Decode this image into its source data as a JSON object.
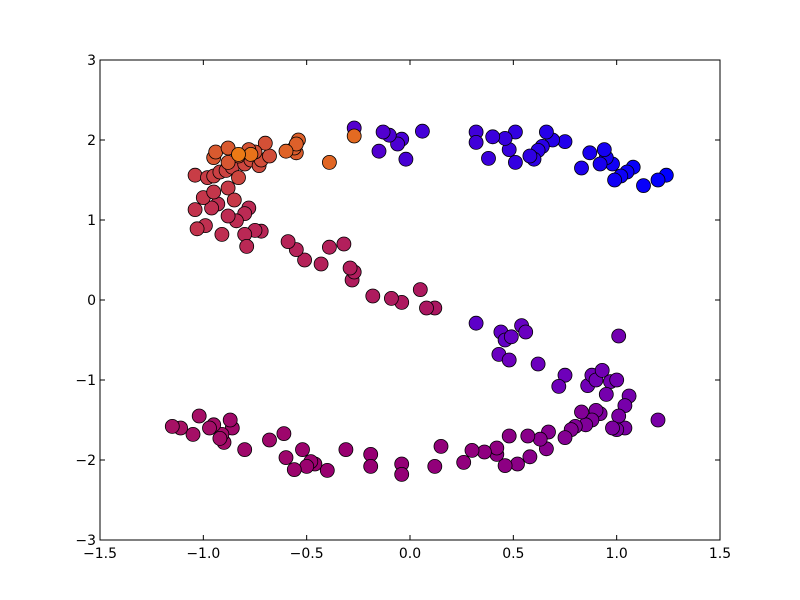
{
  "chart_data": {
    "type": "scatter",
    "title": "",
    "xlabel": "",
    "ylabel": "",
    "xlim": [
      -1.5,
      1.5
    ],
    "ylim": [
      -3,
      3
    ],
    "grid": false,
    "legend": "none",
    "x_ticks": [
      "−1.5",
      "−1.0",
      "−0.5",
      "0.0",
      "0.5",
      "1.0",
      "1.5"
    ],
    "y_ticks": [
      "−3",
      "−2",
      "−1",
      "0",
      "1",
      "2",
      "3"
    ],
    "colormap": "gnuplot2-like (blue → purple → red → orange)",
    "color_stops": [
      "#0000ff",
      "#6a00c0",
      "#980070",
      "#c03050",
      "#f08010"
    ],
    "series": [
      {
        "points": [
          {
            "x": 1.24,
            "y": 1.56,
            "c": 0.0
          },
          {
            "x": 1.2,
            "y": 1.5,
            "c": 0.01
          },
          {
            "x": 1.13,
            "y": 1.43,
            "c": 0.02
          },
          {
            "x": 1.08,
            "y": 1.66,
            "c": 0.02
          },
          {
            "x": 1.05,
            "y": 1.6,
            "c": 0.03
          },
          {
            "x": 1.02,
            "y": 1.55,
            "c": 0.03
          },
          {
            "x": 0.99,
            "y": 1.5,
            "c": 0.04
          },
          {
            "x": 0.98,
            "y": 1.7,
            "c": 0.04
          },
          {
            "x": 0.95,
            "y": 1.78,
            "c": 0.05
          },
          {
            "x": 0.94,
            "y": 1.88,
            "c": 0.05
          },
          {
            "x": 0.92,
            "y": 1.7,
            "c": 0.06
          },
          {
            "x": 0.87,
            "y": 1.84,
            "c": 0.06
          },
          {
            "x": 0.83,
            "y": 1.65,
            "c": 0.07
          },
          {
            "x": 0.75,
            "y": 1.98,
            "c": 0.08
          },
          {
            "x": 0.69,
            "y": 2.0,
            "c": 0.09
          },
          {
            "x": 0.66,
            "y": 2.1,
            "c": 0.09
          },
          {
            "x": 0.64,
            "y": 1.92,
            "c": 0.1
          },
          {
            "x": 0.62,
            "y": 1.87,
            "c": 0.1
          },
          {
            "x": 0.6,
            "y": 1.76,
            "c": 0.11
          },
          {
            "x": 0.58,
            "y": 1.8,
            "c": 0.11
          },
          {
            "x": 0.51,
            "y": 2.1,
            "c": 0.12
          },
          {
            "x": 0.51,
            "y": 1.72,
            "c": 0.12
          },
          {
            "x": 0.48,
            "y": 1.88,
            "c": 0.13
          },
          {
            "x": 0.46,
            "y": 2.02,
            "c": 0.13
          },
          {
            "x": 0.4,
            "y": 2.04,
            "c": 0.14
          },
          {
            "x": 0.38,
            "y": 1.77,
            "c": 0.14
          },
          {
            "x": 0.32,
            "y": 2.1,
            "c": 0.15
          },
          {
            "x": 0.32,
            "y": 1.97,
            "c": 0.15
          },
          {
            "x": 0.06,
            "y": 2.11,
            "c": 0.16
          },
          {
            "x": -0.02,
            "y": 1.76,
            "c": 0.17
          },
          {
            "x": -0.04,
            "y": 2.01,
            "c": 0.17
          },
          {
            "x": -0.06,
            "y": 1.95,
            "c": 0.18
          },
          {
            "x": -0.1,
            "y": 2.06,
            "c": 0.18
          },
          {
            "x": -0.13,
            "y": 2.1,
            "c": 0.19
          },
          {
            "x": -0.15,
            "y": 1.86,
            "c": 0.19
          },
          {
            "x": -0.27,
            "y": 2.15,
            "c": 0.2
          },
          {
            "x": 0.32,
            "y": -0.29,
            "c": 0.22
          },
          {
            "x": 0.44,
            "y": -0.4,
            "c": 0.23
          },
          {
            "x": 0.46,
            "y": -0.5,
            "c": 0.23
          },
          {
            "x": 0.49,
            "y": -0.46,
            "c": 0.24
          },
          {
            "x": 0.54,
            "y": -0.32,
            "c": 0.24
          },
          {
            "x": 0.56,
            "y": -0.4,
            "c": 0.25
          },
          {
            "x": 0.43,
            "y": -0.68,
            "c": 0.25
          },
          {
            "x": 0.48,
            "y": -0.75,
            "c": 0.26
          },
          {
            "x": 0.62,
            "y": -0.8,
            "c": 0.26
          },
          {
            "x": 0.75,
            "y": -0.94,
            "c": 0.27
          },
          {
            "x": 0.72,
            "y": -1.08,
            "c": 0.27
          },
          {
            "x": 0.86,
            "y": -1.07,
            "c": 0.28
          },
          {
            "x": 0.88,
            "y": -0.94,
            "c": 0.28
          },
          {
            "x": 0.9,
            "y": -1.0,
            "c": 0.29
          },
          {
            "x": 0.93,
            "y": -0.88,
            "c": 0.29
          },
          {
            "x": 0.97,
            "y": -1.02,
            "c": 0.3
          },
          {
            "x": 1.0,
            "y": -1.0,
            "c": 0.3
          },
          {
            "x": 1.01,
            "y": -0.45,
            "c": 0.3
          },
          {
            "x": 0.95,
            "y": -1.18,
            "c": 0.31
          },
          {
            "x": 1.06,
            "y": -1.2,
            "c": 0.31
          },
          {
            "x": 1.04,
            "y": -1.32,
            "c": 0.32
          },
          {
            "x": 1.2,
            "y": -1.5,
            "c": 0.33
          },
          {
            "x": 1.04,
            "y": -1.6,
            "c": 0.34
          },
          {
            "x": 1.01,
            "y": -1.45,
            "c": 0.34
          },
          {
            "x": 1.0,
            "y": -1.62,
            "c": 0.35
          },
          {
            "x": 0.98,
            "y": -1.6,
            "c": 0.35
          },
          {
            "x": 0.92,
            "y": -1.42,
            "c": 0.36
          },
          {
            "x": 0.9,
            "y": -1.38,
            "c": 0.36
          },
          {
            "x": 0.88,
            "y": -1.5,
            "c": 0.37
          },
          {
            "x": 0.85,
            "y": -1.56,
            "c": 0.37
          },
          {
            "x": 0.83,
            "y": -1.4,
            "c": 0.38
          },
          {
            "x": 0.8,
            "y": -1.58,
            "c": 0.38
          },
          {
            "x": 0.78,
            "y": -1.62,
            "c": 0.39
          },
          {
            "x": 0.75,
            "y": -1.72,
            "c": 0.39
          },
          {
            "x": 0.67,
            "y": -1.65,
            "c": 0.4
          },
          {
            "x": 0.66,
            "y": -1.86,
            "c": 0.41
          },
          {
            "x": 0.63,
            "y": -1.74,
            "c": 0.41
          },
          {
            "x": 0.58,
            "y": -1.96,
            "c": 0.42
          },
          {
            "x": 0.57,
            "y": -1.7,
            "c": 0.42
          },
          {
            "x": 0.52,
            "y": -2.05,
            "c": 0.43
          },
          {
            "x": 0.48,
            "y": -1.7,
            "c": 0.43
          },
          {
            "x": 0.46,
            "y": -2.07,
            "c": 0.44
          },
          {
            "x": 0.42,
            "y": -1.93,
            "c": 0.44
          },
          {
            "x": 0.42,
            "y": -1.85,
            "c": 0.45
          },
          {
            "x": 0.36,
            "y": -1.9,
            "c": 0.45
          },
          {
            "x": 0.3,
            "y": -1.88,
            "c": 0.46
          },
          {
            "x": 0.26,
            "y": -2.03,
            "c": 0.46
          },
          {
            "x": 0.15,
            "y": -1.83,
            "c": 0.47
          },
          {
            "x": 0.12,
            "y": -2.08,
            "c": 0.47
          },
          {
            "x": -0.04,
            "y": -2.05,
            "c": 0.48
          },
          {
            "x": -0.04,
            "y": -2.18,
            "c": 0.48
          },
          {
            "x": -0.19,
            "y": -1.93,
            "c": 0.49
          },
          {
            "x": -0.19,
            "y": -2.08,
            "c": 0.49
          },
          {
            "x": -0.31,
            "y": -1.87,
            "c": 0.5
          },
          {
            "x": -0.4,
            "y": -2.13,
            "c": 0.5
          },
          {
            "x": -0.46,
            "y": -2.05,
            "c": 0.51
          },
          {
            "x": -0.48,
            "y": -2.02,
            "c": 0.51
          },
          {
            "x": -0.5,
            "y": -2.08,
            "c": 0.51
          },
          {
            "x": -0.52,
            "y": -1.87,
            "c": 0.52
          },
          {
            "x": -0.56,
            "y": -2.12,
            "c": 0.52
          },
          {
            "x": -0.6,
            "y": -1.97,
            "c": 0.53
          },
          {
            "x": -0.61,
            "y": -1.67,
            "c": 0.53
          },
          {
            "x": -0.68,
            "y": -1.75,
            "c": 0.54
          },
          {
            "x": -0.8,
            "y": -1.87,
            "c": 0.54
          },
          {
            "x": -0.86,
            "y": -1.6,
            "c": 0.55
          },
          {
            "x": -0.87,
            "y": -1.5,
            "c": 0.55
          },
          {
            "x": -0.9,
            "y": -1.78,
            "c": 0.56
          },
          {
            "x": -0.91,
            "y": -1.68,
            "c": 0.56
          },
          {
            "x": -0.92,
            "y": -1.73,
            "c": 0.56
          },
          {
            "x": -0.95,
            "y": -1.56,
            "c": 0.57
          },
          {
            "x": -0.97,
            "y": -1.6,
            "c": 0.57
          },
          {
            "x": -1.02,
            "y": -1.45,
            "c": 0.58
          },
          {
            "x": -1.05,
            "y": -1.68,
            "c": 0.58
          },
          {
            "x": -1.11,
            "y": -1.6,
            "c": 0.59
          },
          {
            "x": -1.15,
            "y": -1.58,
            "c": 0.59
          },
          {
            "x": 0.12,
            "y": -0.1,
            "c": 0.62
          },
          {
            "x": 0.08,
            "y": -0.1,
            "c": 0.62
          },
          {
            "x": 0.05,
            "y": 0.13,
            "c": 0.63
          },
          {
            "x": -0.04,
            "y": -0.03,
            "c": 0.63
          },
          {
            "x": -0.09,
            "y": 0.02,
            "c": 0.64
          },
          {
            "x": -0.18,
            "y": 0.05,
            "c": 0.64
          },
          {
            "x": -0.28,
            "y": 0.25,
            "c": 0.65
          },
          {
            "x": -0.27,
            "y": 0.35,
            "c": 0.65
          },
          {
            "x": -0.29,
            "y": 0.4,
            "c": 0.66
          },
          {
            "x": -0.32,
            "y": 0.7,
            "c": 0.66
          },
          {
            "x": -0.39,
            "y": 0.66,
            "c": 0.67
          },
          {
            "x": -0.43,
            "y": 0.45,
            "c": 0.67
          },
          {
            "x": -0.51,
            "y": 0.5,
            "c": 0.68
          },
          {
            "x": -0.55,
            "y": 0.63,
            "c": 0.68
          },
          {
            "x": -0.59,
            "y": 0.73,
            "c": 0.69
          },
          {
            "x": -0.72,
            "y": 0.86,
            "c": 0.7
          },
          {
            "x": -0.75,
            "y": 0.87,
            "c": 0.7
          },
          {
            "x": -0.8,
            "y": 0.82,
            "c": 0.71
          },
          {
            "x": -0.79,
            "y": 0.67,
            "c": 0.71
          },
          {
            "x": -0.78,
            "y": 1.15,
            "c": 0.72
          },
          {
            "x": -0.8,
            "y": 1.08,
            "c": 0.72
          },
          {
            "x": -0.84,
            "y": 0.99,
            "c": 0.73
          },
          {
            "x": -0.88,
            "y": 1.05,
            "c": 0.73
          },
          {
            "x": -0.91,
            "y": 0.82,
            "c": 0.74
          },
          {
            "x": -0.93,
            "y": 1.2,
            "c": 0.74
          },
          {
            "x": -0.96,
            "y": 1.15,
            "c": 0.75
          },
          {
            "x": -0.99,
            "y": 0.93,
            "c": 0.75
          },
          {
            "x": -1.03,
            "y": 0.89,
            "c": 0.76
          },
          {
            "x": -1.04,
            "y": 1.13,
            "c": 0.76
          },
          {
            "x": -1.0,
            "y": 1.28,
            "c": 0.77
          },
          {
            "x": -0.95,
            "y": 1.35,
            "c": 0.77
          },
          {
            "x": -0.88,
            "y": 1.4,
            "c": 0.78
          },
          {
            "x": -0.85,
            "y": 1.25,
            "c": 0.78
          },
          {
            "x": -1.04,
            "y": 1.56,
            "c": 0.79
          },
          {
            "x": -0.98,
            "y": 1.53,
            "c": 0.79
          },
          {
            "x": -0.95,
            "y": 1.55,
            "c": 0.8
          },
          {
            "x": -0.92,
            "y": 1.6,
            "c": 0.8
          },
          {
            "x": -0.89,
            "y": 1.62,
            "c": 0.81
          },
          {
            "x": -0.86,
            "y": 1.66,
            "c": 0.81
          },
          {
            "x": -0.83,
            "y": 1.53,
            "c": 0.82
          },
          {
            "x": -0.8,
            "y": 1.7,
            "c": 0.82
          },
          {
            "x": -0.77,
            "y": 1.75,
            "c": 0.83
          },
          {
            "x": -0.73,
            "y": 1.68,
            "c": 0.83
          },
          {
            "x": -0.72,
            "y": 1.75,
            "c": 0.84
          },
          {
            "x": -0.68,
            "y": 1.8,
            "c": 0.84
          },
          {
            "x": -0.7,
            "y": 1.96,
            "c": 0.85
          },
          {
            "x": -0.75,
            "y": 1.85,
            "c": 0.85
          },
          {
            "x": -0.78,
            "y": 1.88,
            "c": 0.86
          },
          {
            "x": -0.83,
            "y": 1.8,
            "c": 0.86
          },
          {
            "x": -0.88,
            "y": 1.72,
            "c": 0.87
          },
          {
            "x": -0.95,
            "y": 1.78,
            "c": 0.87
          },
          {
            "x": -0.94,
            "y": 1.85,
            "c": 0.88
          },
          {
            "x": -0.88,
            "y": 1.9,
            "c": 0.88
          },
          {
            "x": -0.55,
            "y": 1.84,
            "c": 0.89
          },
          {
            "x": -0.56,
            "y": 1.9,
            "c": 0.89
          },
          {
            "x": -0.54,
            "y": 2.0,
            "c": 0.9
          },
          {
            "x": -0.55,
            "y": 1.95,
            "c": 0.9
          },
          {
            "x": -0.6,
            "y": 1.86,
            "c": 0.91
          },
          {
            "x": -0.39,
            "y": 1.72,
            "c": 0.92
          },
          {
            "x": -0.27,
            "y": 2.05,
            "c": 0.93
          },
          {
            "x": -0.77,
            "y": 1.82,
            "c": 0.96
          },
          {
            "x": -0.83,
            "y": 1.82,
            "c": 0.98
          }
        ]
      }
    ]
  }
}
